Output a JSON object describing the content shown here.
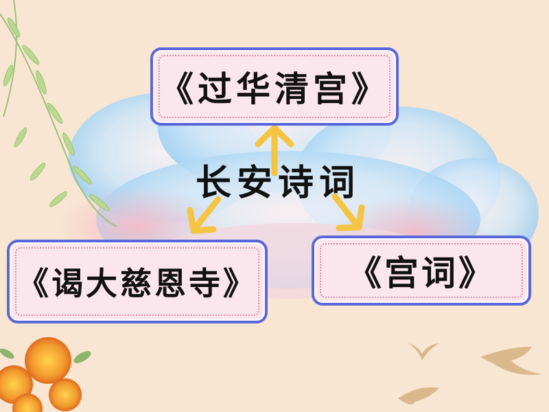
{
  "diagram": {
    "center": {
      "text": "长安诗词"
    },
    "nodes": [
      {
        "id": "top",
        "text": "《过华清宫》"
      },
      {
        "id": "left",
        "text": "《谒大慈恩寺》"
      },
      {
        "id": "right",
        "text": "《宫词》"
      }
    ],
    "edges": [
      {
        "from": "center",
        "to": "top"
      },
      {
        "from": "center",
        "to": "left"
      },
      {
        "from": "center",
        "to": "right"
      }
    ]
  },
  "colors": {
    "background": "#f8e6d2",
    "box_border": "#5b67d8",
    "box_fill": "#fbe6ee",
    "arrow": "#f5c441",
    "cloud": "#8cc8f0",
    "text": "#111111"
  }
}
